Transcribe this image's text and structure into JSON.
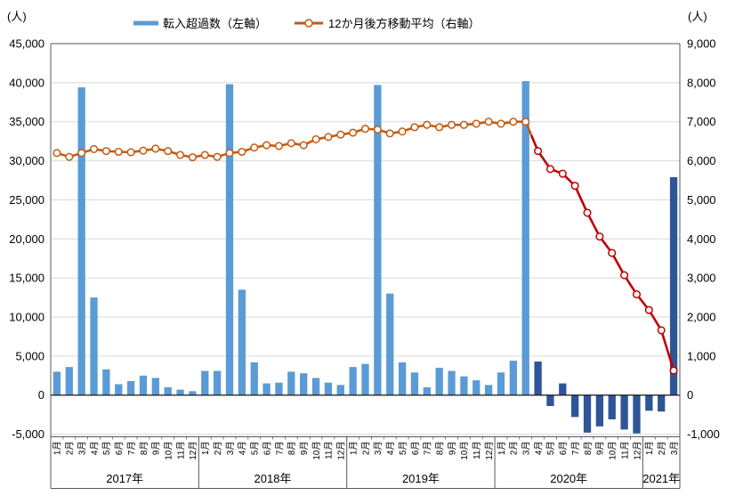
{
  "header": {
    "left_unit": "(人)",
    "right_unit": "(人)"
  },
  "legend": [
    {
      "label": "転入超過数（左軸）",
      "type": "bar",
      "color": "#5B9BD5"
    },
    {
      "label": "12か月後方移動平均（右軸）",
      "type": "line",
      "color": "#C55A11"
    }
  ],
  "chart_data": {
    "type": "bar+line",
    "title": "",
    "grid": true,
    "left_axis": {
      "unit": "(人)",
      "min": -5000,
      "max": 45000,
      "step": 5000,
      "ticks": [
        "45,000",
        "40,000",
        "35,000",
        "30,000",
        "25,000",
        "20,000",
        "15,000",
        "10,000",
        "5,000",
        "0",
        "-5,000"
      ]
    },
    "right_axis": {
      "unit": "(人)",
      "min": -1000,
      "max": 9000,
      "step": 1000,
      "ticks": [
        "9,000",
        "8,000",
        "7,000",
        "6,000",
        "5,000",
        "4,000",
        "3,000",
        "2,000",
        "1,000",
        "0",
        "-1,000"
      ]
    },
    "month_labels": [
      "1月",
      "2月",
      "3月",
      "4月",
      "5月",
      "6月",
      "7月",
      "8月",
      "9月",
      "10月",
      "11月",
      "12月",
      "1月",
      "2月",
      "3月",
      "4月",
      "5月",
      "6月",
      "7月",
      "8月",
      "9月",
      "10月",
      "11月",
      "12月",
      "1月",
      "2月",
      "3月",
      "4月",
      "5月",
      "6月",
      "7月",
      "8月",
      "9月",
      "10月",
      "11月",
      "12月",
      "1月",
      "2月",
      "3月",
      "4月",
      "5月",
      "6月",
      "7月",
      "8月",
      "9月",
      "10月",
      "11月",
      "12月",
      "1月",
      "2月",
      "3月"
    ],
    "year_groups": [
      {
        "label": "2017年",
        "count": 12
      },
      {
        "label": "2018年",
        "count": 12
      },
      {
        "label": "2019年",
        "count": 12
      },
      {
        "label": "2020年",
        "count": 12
      },
      {
        "label": "2021年",
        "count": 3
      }
    ],
    "series": [
      {
        "name": "転入超過数（左軸）",
        "type": "bar",
        "axis": "left",
        "color_light": "#5B9BD5",
        "color_dark": "#2E5597",
        "dark_from_index": 39,
        "values": [
          3000,
          3600,
          39400,
          12500,
          3300,
          1400,
          1800,
          2500,
          2200,
          1000,
          700,
          500,
          3100,
          3100,
          39800,
          13500,
          4200,
          1500,
          1600,
          3000,
          2800,
          2200,
          1600,
          1300,
          3600,
          4000,
          39700,
          13000,
          4200,
          2900,
          1000,
          3500,
          3100,
          2400,
          1900,
          1300,
          2900,
          4400,
          40200,
          4300,
          -1400,
          1500,
          -2800,
          -4800,
          -4000,
          -3100,
          -4400,
          -4900,
          -2000,
          -2100,
          27900
        ]
      },
      {
        "name": "12か月後方移動平均（右軸）",
        "type": "line",
        "axis": "right",
        "color_before": "#C55A11",
        "color_after": "#C00000",
        "red_from_index": 39,
        "marker": "circle-white",
        "values": [
          6200,
          6100,
          6200,
          6300,
          6250,
          6230,
          6220,
          6260,
          6310,
          6250,
          6150,
          6090,
          6150,
          6100,
          6200,
          6230,
          6340,
          6400,
          6380,
          6450,
          6400,
          6550,
          6610,
          6670,
          6720,
          6820,
          6800,
          6700,
          6750,
          6860,
          6920,
          6860,
          6920,
          6920,
          6950,
          7000,
          6950,
          7000,
          7000,
          6250,
          5790,
          5670,
          5360,
          4670,
          4060,
          3640,
          3070,
          2580,
          2180,
          1660,
          630
        ]
      }
    ],
    "colors": {
      "gridline": "#d9d9d9",
      "zero_line": "#1a1a1a",
      "frame": "#595959",
      "bar_light": "#5B9BD5",
      "bar_dark": "#2E5597",
      "line_orange": "#C55A11",
      "line_red": "#C00000"
    }
  }
}
